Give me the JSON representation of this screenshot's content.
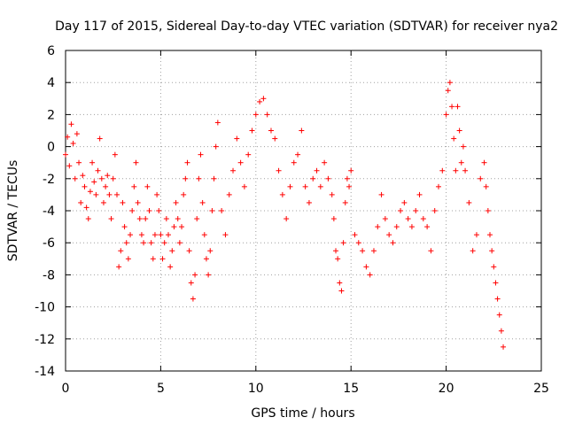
{
  "chart_data": {
    "type": "scatter",
    "title": "Day 117 of 2015, Sidereal Day-to-day VTEC variation (SDTVAR) for receiver nya2",
    "xlabel": "GPS time / hours",
    "ylabel": "SDTVAR / TECUs",
    "xlim": [
      0,
      25
    ],
    "ylim": [
      -14,
      6
    ],
    "xticks": [
      0,
      5,
      10,
      15,
      20,
      25
    ],
    "yticks": [
      -14,
      -12,
      -10,
      -8,
      -6,
      -4,
      -2,
      0,
      2,
      4,
      6
    ],
    "grid": true,
    "marker": "+",
    "color": "#ff0000",
    "series": [
      {
        "name": "SDTVAR",
        "x": [
          0.0,
          0.1,
          0.2,
          0.3,
          0.4,
          0.5,
          0.6,
          0.7,
          0.8,
          0.9,
          1.0,
          1.1,
          1.2,
          1.3,
          1.4,
          1.5,
          1.6,
          1.7,
          1.8,
          1.9,
          2.0,
          2.1,
          2.2,
          2.3,
          2.4,
          2.5,
          2.6,
          2.7,
          2.8,
          2.9,
          3.0,
          3.1,
          3.2,
          3.3,
          3.4,
          3.5,
          3.6,
          3.7,
          3.8,
          3.9,
          4.0,
          4.1,
          4.2,
          4.3,
          4.4,
          4.5,
          4.6,
          4.7,
          4.8,
          4.9,
          5.0,
          5.1,
          5.2,
          5.3,
          5.4,
          5.5,
          5.6,
          5.7,
          5.8,
          5.9,
          6.0,
          6.1,
          6.2,
          6.3,
          6.4,
          6.5,
          6.6,
          6.7,
          6.8,
          6.9,
          7.0,
          7.1,
          7.2,
          7.3,
          7.4,
          7.5,
          7.6,
          7.7,
          7.8,
          7.9,
          8.0,
          8.2,
          8.4,
          8.6,
          8.8,
          9.0,
          9.2,
          9.4,
          9.6,
          9.8,
          10.0,
          10.2,
          10.4,
          10.6,
          10.8,
          11.0,
          11.2,
          11.4,
          11.6,
          11.8,
          12.0,
          12.2,
          12.4,
          12.6,
          12.8,
          13.0,
          13.2,
          13.4,
          13.6,
          13.8,
          14.0,
          14.1,
          14.2,
          14.3,
          14.4,
          14.5,
          14.6,
          14.7,
          14.8,
          14.9,
          15.0,
          15.2,
          15.4,
          15.6,
          15.8,
          16.0,
          16.2,
          16.4,
          16.6,
          16.8,
          17.0,
          17.2,
          17.4,
          17.6,
          17.8,
          18.0,
          18.2,
          18.4,
          18.6,
          18.8,
          19.0,
          19.2,
          19.4,
          19.6,
          19.8,
          20.0,
          20.1,
          20.2,
          20.3,
          20.4,
          20.5,
          20.6,
          20.7,
          20.8,
          20.9,
          21.0,
          21.2,
          21.4,
          21.6,
          21.8,
          22.0,
          22.1,
          22.2,
          22.3,
          22.4,
          22.5,
          22.6,
          22.7,
          22.8,
          22.9,
          23.0
        ],
        "y": [
          -0.5,
          0.6,
          -1.2,
          1.4,
          0.2,
          -2.0,
          0.8,
          -1.0,
          -3.5,
          -1.8,
          -2.5,
          -3.8,
          -4.5,
          -2.8,
          -1.0,
          -2.2,
          -3.0,
          -1.5,
          0.5,
          -2.0,
          -3.5,
          -2.5,
          -1.8,
          -3.0,
          -4.5,
          -2.0,
          -0.5,
          -3.0,
          -7.5,
          -6.5,
          -3.5,
          -5.0,
          -6.0,
          -7.0,
          -5.5,
          -4.0,
          -2.5,
          -1.0,
          -3.5,
          -4.5,
          -5.5,
          -6.0,
          -4.5,
          -2.5,
          -4.0,
          -6.0,
          -7.0,
          -5.5,
          -3.0,
          -4.0,
          -5.5,
          -7.0,
          -6.0,
          -4.5,
          -5.5,
          -7.5,
          -6.5,
          -5.0,
          -3.5,
          -4.5,
          -6.0,
          -5.0,
          -3.0,
          -2.0,
          -1.0,
          -6.5,
          -8.5,
          -9.5,
          -8.0,
          -4.5,
          -2.0,
          -0.5,
          -3.5,
          -5.5,
          -7.0,
          -8.0,
          -6.5,
          -4.0,
          -2.0,
          0.0,
          1.5,
          -4.0,
          -5.5,
          -3.0,
          -1.5,
          0.5,
          -1.0,
          -2.5,
          -0.5,
          1.0,
          2.0,
          2.8,
          3.0,
          2.0,
          1.0,
          0.5,
          -1.5,
          -3.0,
          -4.5,
          -2.5,
          -1.0,
          -0.5,
          1.0,
          -2.5,
          -3.5,
          -2.0,
          -1.5,
          -2.5,
          -1.0,
          -2.0,
          -3.0,
          -4.5,
          -6.5,
          -7.0,
          -8.5,
          -9.0,
          -6.0,
          -3.5,
          -2.0,
          -2.5,
          -1.5,
          -5.5,
          -6.0,
          -6.5,
          -7.5,
          -8.0,
          -6.5,
          -5.0,
          -3.0,
          -4.5,
          -5.5,
          -6.0,
          -5.0,
          -4.0,
          -3.5,
          -4.5,
          -5.0,
          -4.0,
          -3.0,
          -4.5,
          -5.0,
          -6.5,
          -4.0,
          -2.5,
          -1.5,
          2.0,
          3.5,
          4.0,
          2.5,
          0.5,
          -1.5,
          2.5,
          1.0,
          -1.0,
          0.0,
          -1.5,
          -3.5,
          -6.5,
          -5.5,
          -2.0,
          -1.0,
          -2.5,
          -4.0,
          -5.5,
          -6.5,
          -7.5,
          -8.5,
          -9.5,
          -10.5,
          -11.5,
          -12.5
        ]
      }
    ]
  }
}
